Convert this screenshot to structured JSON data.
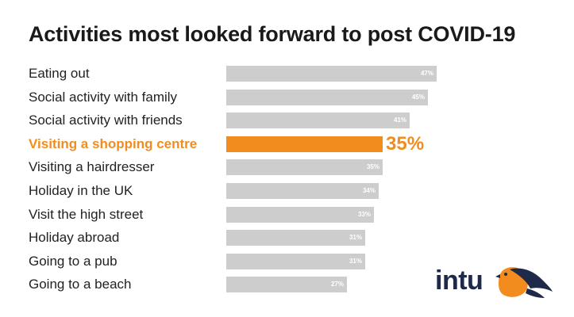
{
  "title": "Activities most looked forward to post COVID-19",
  "colors": {
    "bar": "#cdcdcd",
    "highlight": "#f28c1e",
    "label": "#222222",
    "title": "#1a1a1a",
    "logo": "#1f2a4a"
  },
  "logo": {
    "text": "intu",
    "icon": "bird-icon"
  },
  "chart_data": {
    "type": "bar",
    "orientation": "horizontal",
    "categories": [
      "Eating out",
      "Social activity with family",
      "Social activity with friends",
      "Visiting a shopping centre",
      "Visiting a hairdresser",
      "Holiday in the UK",
      "Visit the high street",
      "Holiday abroad",
      "Going to a pub",
      "Going to a beach"
    ],
    "values": [
      47,
      45,
      41,
      35,
      35,
      34,
      33,
      31,
      31,
      27
    ],
    "value_labels": [
      "47%",
      "45%",
      "41%",
      "35%",
      "35%",
      "34%",
      "33%",
      "31%",
      "31%",
      "27%"
    ],
    "highlight_index": 3,
    "title": "Activities most looked forward to post COVID-19",
    "xlabel": "",
    "ylabel": "",
    "xlim": [
      0,
      47
    ],
    "grid": false,
    "legend": "none"
  }
}
